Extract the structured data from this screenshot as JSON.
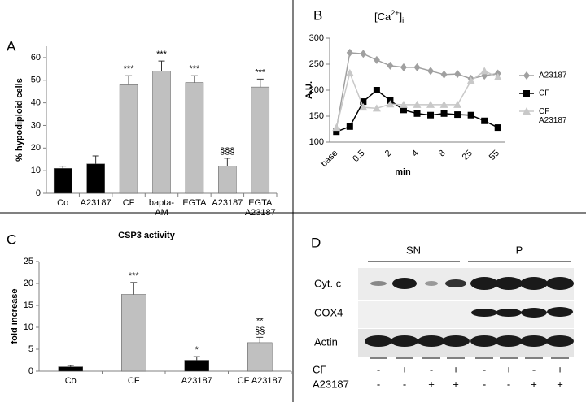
{
  "chart_data": [
    {
      "type": "bar",
      "panel": "A",
      "ylabel": "% hypodiploid cells",
      "categories": [
        "Co",
        "A23187",
        "CF",
        "bapta-\nAM",
        "EGTA",
        "A23187",
        "EGTA\nA23187"
      ],
      "values": [
        11,
        13,
        48,
        54,
        49,
        12,
        47
      ],
      "errors": [
        1,
        3.5,
        4,
        4.5,
        3,
        3.5,
        3.5
      ],
      "colors": [
        "#000000",
        "#000000",
        "#c0c0c0",
        "#c0c0c0",
        "#c0c0c0",
        "#c0c0c0",
        "#c0c0c0"
      ],
      "annotations": [
        null,
        null,
        "***",
        "***",
        "***",
        "§§§",
        "***"
      ],
      "ylim": [
        0,
        65
      ],
      "yticks": [
        0,
        10,
        20,
        30,
        40,
        50,
        60
      ]
    },
    {
      "type": "line",
      "panel": "B",
      "title_parts": [
        "[Ca",
        "2+",
        "]",
        "i"
      ],
      "ylabel": "A.U.",
      "xlabel": "min",
      "categories": [
        "base",
        null,
        "0.5",
        null,
        "2",
        null,
        "4",
        null,
        "8",
        null,
        "25",
        null,
        "55"
      ],
      "series": [
        {
          "name": "A23187",
          "color": "#a0a0a0",
          "marker": "diamond",
          "values": [
            125,
            272,
            270,
            258,
            247,
            244,
            244,
            237,
            230,
            231,
            222,
            228,
            232
          ]
        },
        {
          "name": "CF",
          "color": "#000000",
          "marker": "square",
          "values": [
            120,
            130,
            178,
            200,
            180,
            162,
            155,
            152,
            155,
            153,
            152,
            141,
            128
          ]
        },
        {
          "name": "CF\nA23187",
          "color": "#c8c8c8",
          "marker": "triangle",
          "values": [
            128,
            233,
            167,
            165,
            173,
            172,
            172,
            172,
            172,
            172,
            218,
            237,
            225
          ]
        }
      ],
      "ylim": [
        100,
        300
      ],
      "yticks": [
        100,
        150,
        200,
        250,
        300
      ],
      "legend": "right"
    },
    {
      "type": "bar",
      "panel": "C",
      "title": "CSP3 activity",
      "ylabel": "fold increase",
      "categories": [
        "Co",
        "CF",
        "A23187",
        "CF A23187"
      ],
      "values": [
        1,
        17.5,
        2.5,
        6.5
      ],
      "errors": [
        0.3,
        2.7,
        0.8,
        1.2
      ],
      "colors": [
        "#000000",
        "#c0c0c0",
        "#000000",
        "#c0c0c0"
      ],
      "annotations": [
        null,
        "***",
        "*",
        "**\n§§"
      ],
      "ylim": [
        0,
        25
      ],
      "yticks": [
        0,
        5,
        10,
        15,
        20,
        25
      ]
    }
  ],
  "blot": {
    "panel": "D",
    "groups": [
      "SN",
      "P"
    ],
    "rows": [
      "Cyt. c",
      "COX4",
      "Actin"
    ],
    "conditions": [
      {
        "name": "CF",
        "signs": [
          "-",
          "+",
          "-",
          "+",
          "-",
          "+",
          "-",
          "+"
        ]
      },
      {
        "name": "A23187",
        "signs": [
          "-",
          "-",
          "+",
          "+",
          "-",
          "-",
          "+",
          "+"
        ]
      }
    ]
  }
}
